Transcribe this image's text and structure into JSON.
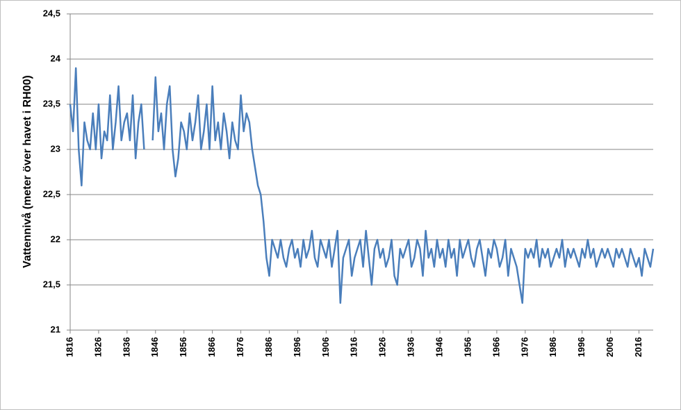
{
  "chart_data": {
    "type": "line",
    "y_label": "Vattennivå (meter över havet i RH00)",
    "x": [
      1816,
      1817,
      1818,
      1819,
      1820,
      1821,
      1822,
      1823,
      1824,
      1825,
      1826,
      1827,
      1828,
      1829,
      1830,
      1831,
      1832,
      1833,
      1834,
      1835,
      1836,
      1837,
      1838,
      1839,
      1840,
      1841,
      1842,
      1843,
      1844,
      1845,
      1846,
      1847,
      1848,
      1849,
      1850,
      1851,
      1852,
      1853,
      1854,
      1855,
      1856,
      1857,
      1858,
      1859,
      1860,
      1861,
      1862,
      1863,
      1864,
      1865,
      1866,
      1867,
      1868,
      1869,
      1870,
      1871,
      1872,
      1873,
      1874,
      1875,
      1876,
      1877,
      1878,
      1879,
      1880,
      1881,
      1882,
      1883,
      1884,
      1885,
      1886,
      1887,
      1888,
      1889,
      1890,
      1891,
      1892,
      1893,
      1894,
      1895,
      1896,
      1897,
      1898,
      1899,
      1900,
      1901,
      1902,
      1903,
      1904,
      1905,
      1906,
      1907,
      1908,
      1909,
      1910,
      1911,
      1912,
      1913,
      1914,
      1915,
      1916,
      1917,
      1918,
      1919,
      1920,
      1921,
      1922,
      1923,
      1924,
      1925,
      1926,
      1927,
      1928,
      1929,
      1930,
      1931,
      1932,
      1933,
      1934,
      1935,
      1936,
      1937,
      1938,
      1939,
      1940,
      1941,
      1942,
      1943,
      1944,
      1945,
      1946,
      1947,
      1948,
      1949,
      1950,
      1951,
      1952,
      1953,
      1954,
      1955,
      1956,
      1957,
      1958,
      1959,
      1960,
      1961,
      1962,
      1963,
      1964,
      1965,
      1966,
      1967,
      1968,
      1969,
      1970,
      1971,
      1972,
      1973,
      1974,
      1975,
      1976,
      1977,
      1978,
      1979,
      1980,
      1981,
      1982,
      1983,
      1984,
      1985,
      1986,
      1987,
      1988,
      1989,
      1990,
      1991,
      1992,
      1993,
      1994,
      1995,
      1996,
      1997,
      1998,
      1999,
      2000,
      2001,
      2002,
      2003,
      2004,
      2005,
      2006,
      2007,
      2008,
      2009,
      2010,
      2011,
      2012,
      2013,
      2014,
      2015,
      2016,
      2017,
      2018,
      2019,
      2020,
      2021
    ],
    "series": [
      {
        "color": "#4a7ebb",
        "values": [
          23.5,
          23.2,
          23.9,
          23.0,
          22.6,
          23.3,
          23.1,
          23.0,
          23.4,
          23.0,
          23.5,
          22.9,
          23.2,
          23.1,
          23.6,
          23.0,
          23.3,
          23.7,
          23.1,
          23.3,
          23.4,
          23.1,
          23.6,
          22.9,
          23.3,
          23.5,
          23.0,
          null,
          null,
          23.1,
          23.8,
          23.2,
          23.4,
          23.0,
          23.5,
          23.7,
          23.0,
          22.7,
          22.9,
          23.3,
          23.2,
          23.0,
          23.4,
          23.1,
          23.3,
          23.6,
          23.0,
          23.2,
          23.5,
          23.0,
          23.7,
          23.1,
          23.3,
          23.0,
          23.4,
          23.2,
          22.9,
          23.3,
          23.1,
          23.0,
          23.6,
          23.2,
          23.4,
          23.3,
          23.0,
          22.8,
          22.6,
          22.5,
          22.2,
          21.8,
          21.6,
          22.0,
          21.9,
          21.8,
          22.0,
          21.8,
          21.7,
          21.9,
          22.0,
          21.8,
          21.9,
          21.7,
          22.0,
          21.8,
          21.9,
          22.1,
          21.8,
          21.7,
          22.0,
          21.9,
          21.8,
          22.0,
          21.7,
          21.9,
          22.1,
          21.3,
          21.8,
          21.9,
          22.0,
          21.6,
          21.8,
          21.9,
          22.0,
          21.7,
          22.1,
          21.8,
          21.5,
          21.9,
          22.0,
          21.8,
          21.9,
          21.7,
          21.8,
          22.0,
          21.6,
          21.5,
          21.9,
          21.8,
          21.9,
          22.0,
          21.7,
          21.8,
          22.0,
          21.9,
          21.6,
          22.1,
          21.8,
          21.9,
          21.7,
          22.0,
          21.8,
          21.9,
          21.7,
          22.0,
          21.8,
          21.9,
          21.6,
          22.0,
          21.8,
          21.9,
          22.0,
          21.8,
          21.7,
          21.9,
          22.0,
          21.8,
          21.6,
          21.9,
          21.8,
          22.0,
          21.9,
          21.7,
          21.8,
          22.0,
          21.6,
          21.9,
          21.8,
          21.7,
          21.5,
          21.3,
          21.9,
          21.8,
          21.9,
          21.8,
          22.0,
          21.7,
          21.9,
          21.8,
          21.9,
          21.7,
          21.8,
          21.9,
          21.8,
          22.0,
          21.7,
          21.9,
          21.8,
          21.9,
          21.8,
          21.7,
          21.9,
          21.8,
          22.0,
          21.8,
          21.9,
          21.7,
          21.8,
          21.9,
          21.8,
          21.9,
          21.8,
          21.7,
          21.9,
          21.8,
          21.9,
          21.8,
          21.7,
          21.9,
          21.8,
          21.7,
          21.8,
          21.6,
          21.9,
          21.8,
          21.7,
          21.9
        ]
      }
    ],
    "xlim": [
      1816,
      2021
    ],
    "xticks": [
      1816,
      1826,
      1836,
      1846,
      1856,
      1866,
      1876,
      1886,
      1896,
      1906,
      1916,
      1926,
      1936,
      1946,
      1956,
      1966,
      1976,
      1986,
      1996,
      2006,
      2016
    ],
    "ylim": [
      21,
      24.5
    ],
    "yticks": [
      21,
      {
        "value": 21.5,
        "label": "21,5"
      },
      22,
      {
        "value": 22.5,
        "label": "22,5"
      },
      23,
      {
        "value": 23.5,
        "label": "23,5"
      },
      24,
      {
        "value": 24.5,
        "label": "24,5"
      }
    ],
    "grid": true
  }
}
